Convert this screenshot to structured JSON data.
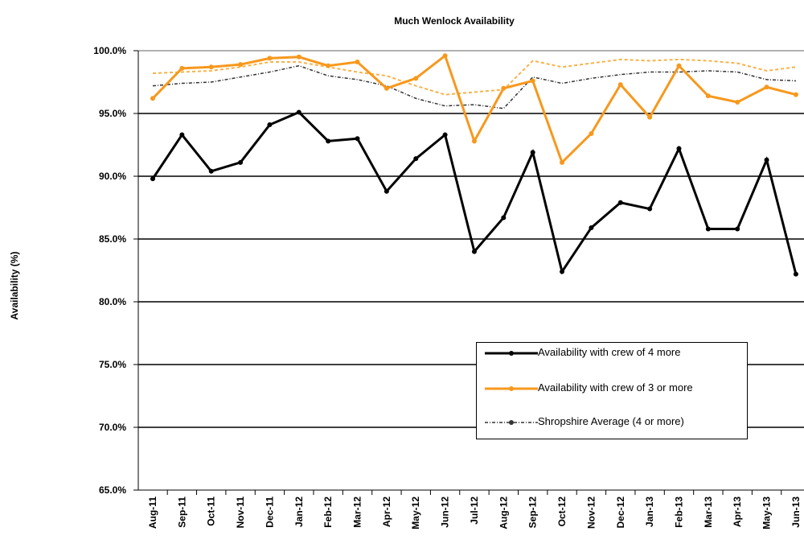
{
  "chart_data": {
    "type": "line",
    "title": "Much Wenlock Availability",
    "y_label": "Availability (%)",
    "categories": [
      "Aug-11",
      "Sep-11",
      "Oct-11",
      "Nov-11",
      "Dec-11",
      "Jan-12",
      "Feb-12",
      "Mar-12",
      "Apr-12",
      "May-12",
      "Jun-12",
      "Jul-12",
      "Aug-12",
      "Sep-12",
      "Oct-12",
      "Nov-12",
      "Dec-12",
      "Jan-13",
      "Feb-13",
      "Mar-13",
      "Apr-13",
      "May-13",
      "Jun-13"
    ],
    "series": [
      {
        "name": "Availability with crew of 4 more",
        "color": "#000000",
        "dash": "none",
        "width": 3,
        "values": [
          89.8,
          93.3,
          90.4,
          91.1,
          94.1,
          95.1,
          92.8,
          93.0,
          88.8,
          91.4,
          93.3,
          84.0,
          86.7,
          91.9,
          82.4,
          85.9,
          87.9,
          87.4,
          92.2,
          85.8,
          85.8,
          91.3,
          82.2
        ]
      },
      {
        "name": "Availability with crew of 3 or more",
        "color": "#f7981d",
        "dash": "none",
        "width": 3,
        "values": [
          96.2,
          98.6,
          98.7,
          98.9,
          99.4,
          99.5,
          98.8,
          99.1,
          97.0,
          97.8,
          99.6,
          92.8,
          97.0,
          97.6,
          91.1,
          93.4,
          97.3,
          94.7,
          98.8,
          96.4,
          95.9,
          97.1,
          96.5
        ]
      },
      {
        "name": "Shropshire Average (4 or more)",
        "color": "#333333",
        "dash": "4 2 1 2",
        "width": 1.5,
        "values": [
          97.2,
          97.4,
          97.5,
          97.9,
          98.3,
          98.8,
          98.0,
          97.7,
          97.2,
          96.2,
          95.6,
          95.7,
          95.4,
          97.9,
          97.4,
          97.8,
          98.1,
          98.3,
          98.3,
          98.4,
          98.3,
          97.7,
          97.6
        ]
      },
      {
        "color": "#f7b24a",
        "dash": "4 3",
        "width": 2,
        "values": [
          98.2,
          98.3,
          98.4,
          98.7,
          99.1,
          99.1,
          98.7,
          98.3,
          98.0,
          97.2,
          96.5,
          96.7,
          96.9,
          99.2,
          98.7,
          99.0,
          99.3,
          99.2,
          99.3,
          99.2,
          99.0,
          98.4,
          98.7
        ]
      }
    ],
    "ylim": [
      65,
      100
    ],
    "yticks": [
      {
        "value": 65,
        "label": "65.0%"
      },
      {
        "value": 70,
        "label": "70.0%"
      },
      {
        "value": 75,
        "label": "75.0%"
      },
      {
        "value": 80,
        "label": "80.0%"
      },
      {
        "value": 85,
        "label": "85.0%"
      },
      {
        "value": 90,
        "label": "90.0%"
      },
      {
        "value": 95,
        "label": "95.0%"
      },
      {
        "value": 100,
        "label": "100.0%"
      }
    ],
    "grid": true
  }
}
